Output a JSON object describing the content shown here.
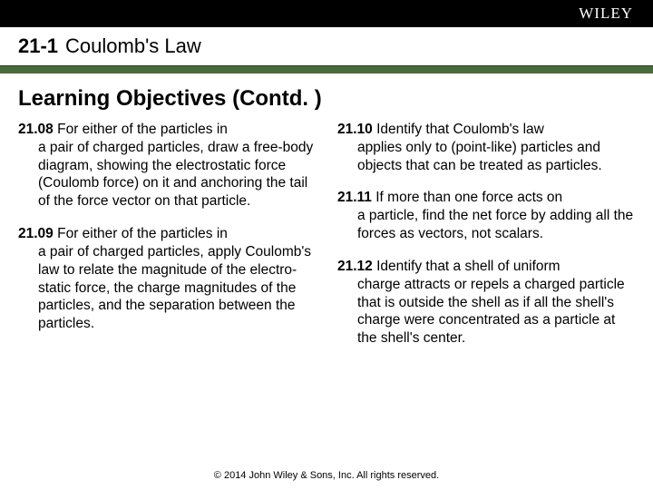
{
  "brand": "WILEY",
  "section": {
    "number": "21-1",
    "title": "Coulomb's Law"
  },
  "subheading": "Learning Objectives (Contd. )",
  "left": [
    {
      "num": "21.08",
      "text": "For either of the particles in a pair of charged particles, draw a free-body diagram, showing the electrostatic force (Coulomb force) on it and anchoring the tail of the force vector on that particle."
    },
    {
      "num": "21.09",
      "text": "For either of the particles in a pair of charged particles, apply Coulomb's law to relate the magnitude of the electro- static force, the charge magnitudes of the particles, and the separation between the particles."
    }
  ],
  "right": [
    {
      "num": "21.10",
      "text": "Identify that Coulomb's law applies only to (point-like) particles and objects that can be treated as particles."
    },
    {
      "num": "21.11",
      "text": "If more than one force acts on a particle, find the net force by adding all the forces as vectors, not scalars."
    },
    {
      "num": "21.12",
      "text": "Identify that a shell of uniform charge attracts or repels a charged particle that is outside the shell as if all the shell's charge were concentrated as a particle at the shell's center."
    }
  ],
  "footer": "© 2014 John Wiley & Sons, Inc. All rights reserved.",
  "colors": {
    "topbar_bg": "#000000",
    "greenbar_bg": "#4a6b3a",
    "page_bg": "#ffffff",
    "text": "#000000"
  }
}
